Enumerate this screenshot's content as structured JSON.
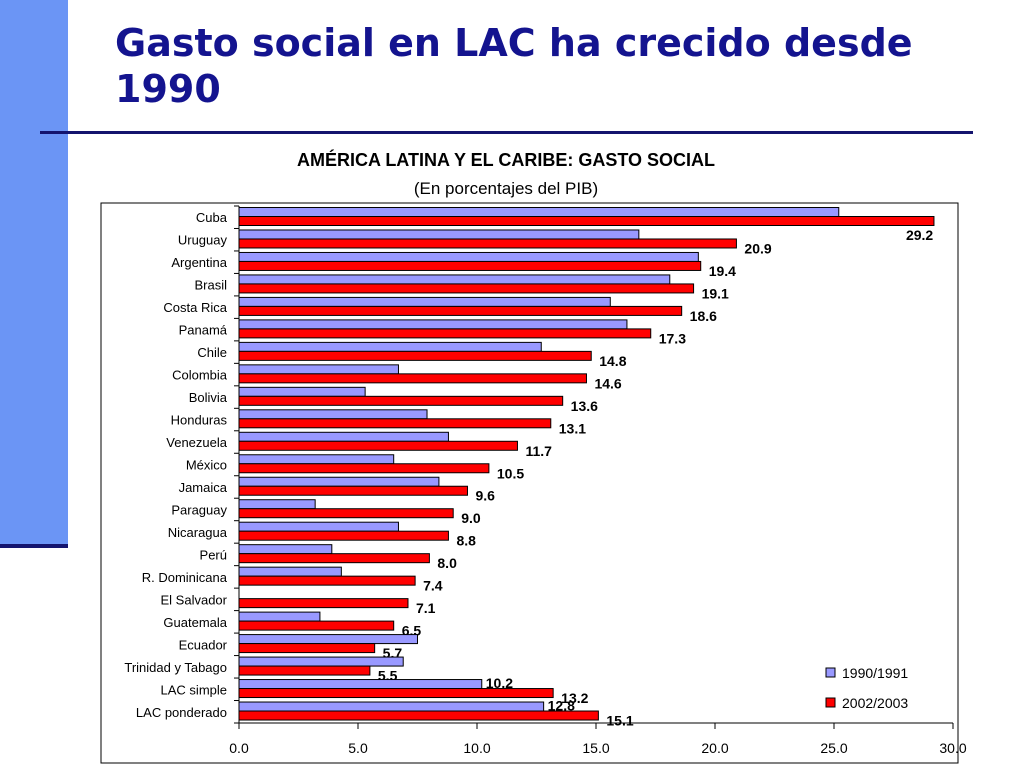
{
  "slide": {
    "title": "Gasto social en LAC ha crecido desde 1990"
  },
  "colors": {
    "accent": "#6b95f5",
    "dark_blue": "#14146e",
    "series_1990": "#9999ff",
    "series_2002": "#ff0000"
  },
  "chart_data": {
    "type": "bar",
    "orientation": "horizontal",
    "title": "AMÉRICA LATINA Y EL CARIBE: GASTO SOCIAL",
    "subtitle": "(En porcentajes del PIB)",
    "categories": [
      "Cuba",
      "Uruguay",
      "Argentina",
      "Brasil",
      "Costa Rica",
      "Panamá",
      "Chile",
      "Colombia",
      "Bolivia",
      "Honduras",
      "Venezuela",
      "México",
      "Jamaica",
      "Paraguay",
      "Nicaragua",
      "Perú",
      "R. Dominicana",
      "El Salvador",
      "Guatemala",
      "Ecuador",
      "Trinidad y Tabago",
      "LAC simple",
      "LAC ponderado"
    ],
    "series": [
      {
        "name": "1990/1991",
        "values": [
          25.2,
          16.8,
          19.3,
          18.1,
          15.6,
          16.3,
          12.7,
          6.7,
          5.3,
          7.9,
          8.8,
          6.5,
          8.4,
          3.2,
          6.7,
          3.9,
          4.3,
          null,
          3.4,
          7.5,
          6.9,
          10.2,
          12.8
        ],
        "labels": [
          null,
          null,
          null,
          null,
          null,
          null,
          null,
          null,
          null,
          null,
          null,
          null,
          null,
          null,
          null,
          null,
          null,
          null,
          null,
          null,
          null,
          "10.2",
          "12.8"
        ]
      },
      {
        "name": "2002/2003",
        "values": [
          29.2,
          20.9,
          19.4,
          19.1,
          18.6,
          17.3,
          14.8,
          14.6,
          13.6,
          13.1,
          11.7,
          10.5,
          9.6,
          9.0,
          8.8,
          8.0,
          7.4,
          7.1,
          6.5,
          5.7,
          5.5,
          13.2,
          15.1
        ],
        "labels": [
          "29.2",
          "20.9",
          "19.4",
          "19.1",
          "18.6",
          "17.3",
          "14.8",
          "14.6",
          "13.6",
          "13.1",
          "11.7",
          "10.5",
          "9.6",
          "9.0",
          "8.8",
          "8.0",
          "7.4",
          "7.1",
          "6.5",
          "5.7",
          "5.5",
          "13.2",
          "15.1"
        ]
      }
    ],
    "xlim": [
      0,
      30
    ],
    "x_ticks": [
      "0.0",
      "5.0",
      "10.0",
      "15.0",
      "20.0",
      "25.0",
      "30.0"
    ],
    "legend": {
      "position": "bottom-right",
      "entries": [
        "1990/1991",
        "2002/2003"
      ]
    },
    "grid": false
  }
}
